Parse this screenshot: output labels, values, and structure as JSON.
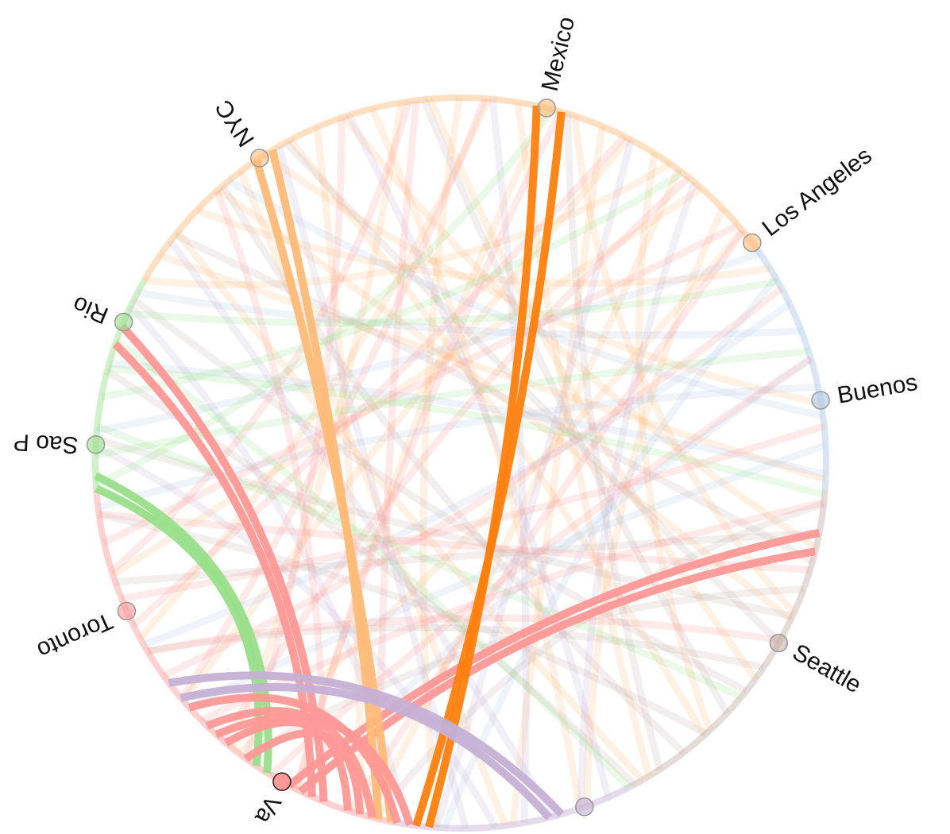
{
  "nodes": [
    {
      "label": "Mexico"
    },
    {
      "label": "NYC"
    },
    {
      "label": "Los Angeles"
    },
    {
      "label": "Buenos"
    },
    {
      "label": "Rio"
    },
    {
      "label": "Sao P"
    },
    {
      "label": "Toronto"
    },
    {
      "label": "Seattle"
    },
    {
      "label": "Va"
    },
    {
      "label": null
    }
  ]
}
